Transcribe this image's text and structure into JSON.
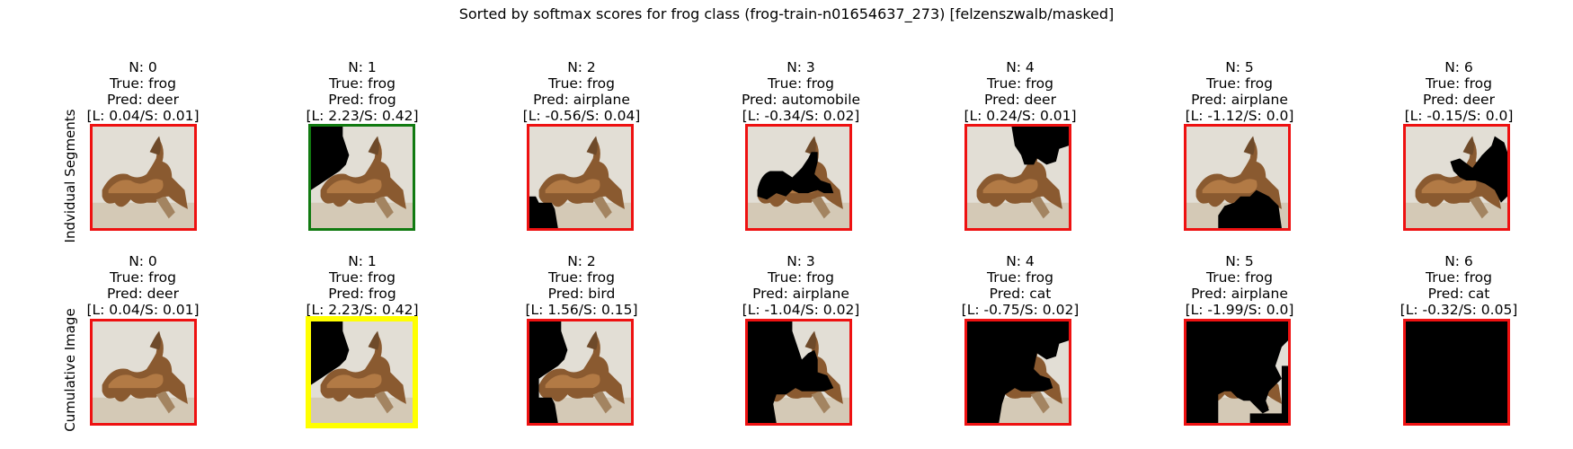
{
  "title": "Sorted by softmax scores for frog class (frog-train-n01654637_273) [felzenszwalb/masked]",
  "colors": {
    "wrong": "#ee1111",
    "correct": "#117a11",
    "best": "#ffff00",
    "mask": "#000000"
  },
  "rows": [
    {
      "label": "Indvidual Segments",
      "cells": [
        {
          "n": "N: 0",
          "true": "True: frog",
          "pred": "Pred: deer",
          "score": "[L: 0.04/S: 0.01]",
          "status": "wrong",
          "mask": "none"
        },
        {
          "n": "N: 1",
          "true": "True: frog",
          "pred": "Pred: frog",
          "score": "[L: 2.23/S: 0.42]",
          "status": "correct",
          "mask": "topleft"
        },
        {
          "n": "N: 2",
          "true": "True: frog",
          "pred": "Pred: airplane",
          "score": "[L: -0.56/S: 0.04]",
          "status": "wrong",
          "mask": "bottomleft"
        },
        {
          "n": "N: 3",
          "true": "True: frog",
          "pred": "Pred: automobile",
          "score": "[L: -0.34/S: 0.02]",
          "status": "wrong",
          "mask": "body"
        },
        {
          "n": "N: 4",
          "true": "True: frog",
          "pred": "Pred: deer",
          "score": "[L: 0.24/S: 0.01]",
          "status": "wrong",
          "mask": "topright"
        },
        {
          "n": "N: 5",
          "true": "True: frog",
          "pred": "Pred: airplane",
          "score": "[L: -1.12/S: 0.0]",
          "status": "wrong",
          "mask": "bottomcenter"
        },
        {
          "n": "N: 6",
          "true": "True: frog",
          "pred": "Pred: deer",
          "score": "[L: -0.15/S: 0.0]",
          "status": "wrong",
          "mask": "right"
        }
      ]
    },
    {
      "label": "Cumulative Image",
      "cells": [
        {
          "n": "N: 0",
          "true": "True: frog",
          "pred": "Pred: deer",
          "score": "[L: 0.04/S: 0.01]",
          "status": "wrong",
          "mask": "none"
        },
        {
          "n": "N: 1",
          "true": "True: frog",
          "pred": "Pred: frog",
          "score": "[L: 2.23/S: 0.42]",
          "status": "best",
          "mask": "topleft"
        },
        {
          "n": "N: 2",
          "true": "True: frog",
          "pred": "Pred: bird",
          "score": "[L: 1.56/S: 0.15]",
          "status": "wrong",
          "mask": "cum2"
        },
        {
          "n": "N: 3",
          "true": "True: frog",
          "pred": "Pred: airplane",
          "score": "[L: -1.04/S: 0.02]",
          "status": "wrong",
          "mask": "cum3"
        },
        {
          "n": "N: 4",
          "true": "True: frog",
          "pred": "Pred: cat",
          "score": "[L: -0.75/S: 0.02]",
          "status": "wrong",
          "mask": "cum4"
        },
        {
          "n": "N: 5",
          "true": "True: frog",
          "pred": "Pred: airplane",
          "score": "[L: -1.99/S: 0.0]",
          "status": "wrong",
          "mask": "cum5"
        },
        {
          "n": "N: 6",
          "true": "True: frog",
          "pred": "Pred: cat",
          "score": "[L: -0.32/S: 0.05]",
          "status": "wrong",
          "mask": "full"
        }
      ]
    }
  ]
}
